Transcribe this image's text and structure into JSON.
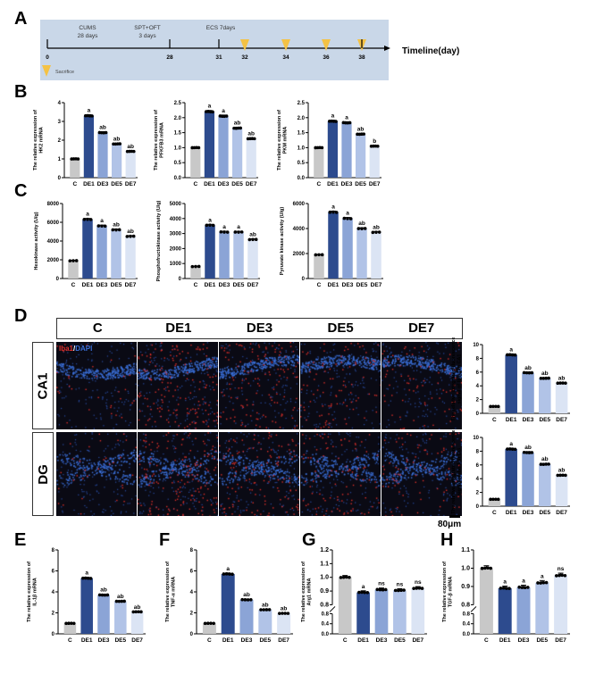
{
  "panel_labels": {
    "A": "A",
    "B": "B",
    "C": "C",
    "D": "D",
    "E": "E",
    "F": "F",
    "G": "G",
    "H": "H"
  },
  "timeline": {
    "phases": [
      {
        "name": "CUMS",
        "duration": "28 days"
      },
      {
        "name": "SPT+OFT",
        "duration": "3 days"
      },
      {
        "name": "ECS 7days",
        "duration": ""
      }
    ],
    "days": [
      "0",
      "28",
      "31",
      "32",
      "34",
      "36",
      "38"
    ],
    "sacrifice_days": [
      "32",
      "34",
      "36",
      "38"
    ],
    "axis_label": "Timeline(day)",
    "legend_label": "Sacrifice",
    "colors": {
      "band": "#c9d7e8",
      "marker": "#f4c245"
    }
  },
  "panel_d": {
    "columns": [
      "C",
      "DE1",
      "DE3",
      "DE5",
      "DE7"
    ],
    "rows": [
      "CA1",
      "DG"
    ],
    "stain": {
      "marker": "Iba1",
      "separator": "/",
      "counterstain": "DAPI"
    },
    "scale_bar": "80μm",
    "colors": {
      "marker": "#e0302a",
      "counterstain": "#3a6fd8"
    }
  },
  "group_colors": {
    "C": "#c8c8c8",
    "DE1": "#2d4b8e",
    "DE3": "#8ba4d6",
    "DE5": "#b1c3e7",
    "DE7": "#dbe4f4"
  },
  "chart_data": [
    {
      "id": "B1",
      "panel": "B",
      "type": "bar",
      "categories": [
        "C",
        "DE1",
        "DE3",
        "DE5",
        "DE7"
      ],
      "values": [
        1.0,
        3.3,
        2.4,
        1.8,
        1.4
      ],
      "significance": [
        "",
        "a",
        "ab",
        "ab",
        "ab"
      ],
      "ylabel_lines": [
        "The relative expression of",
        "HK2 mRNA"
      ],
      "ylim": [
        0,
        4
      ],
      "yticks": [
        0,
        1,
        2,
        3,
        4
      ],
      "ytick_labels": [
        "0",
        "1",
        "2",
        "3",
        "4"
      ]
    },
    {
      "id": "B2",
      "panel": "B",
      "type": "bar",
      "categories": [
        "C",
        "DE1",
        "DE3",
        "DE5",
        "DE7"
      ],
      "values": [
        1.0,
        2.2,
        2.05,
        1.65,
        1.3
      ],
      "significance": [
        "",
        "a",
        "a",
        "ab",
        "ab"
      ],
      "ylabel_lines": [
        "The relative expression of",
        "PFKFB3 mRNA"
      ],
      "ylim": [
        0,
        2.5
      ],
      "yticks": [
        0,
        0.5,
        1,
        1.5,
        2,
        2.5
      ],
      "ytick_labels": [
        "0.0",
        "0.5",
        "1.0",
        "1.5",
        "2.0",
        "2.5"
      ]
    },
    {
      "id": "B3",
      "panel": "B",
      "type": "bar",
      "categories": [
        "C",
        "DE1",
        "DE3",
        "DE5",
        "DE7"
      ],
      "values": [
        1.0,
        1.88,
        1.83,
        1.45,
        1.05
      ],
      "significance": [
        "",
        "a",
        "a",
        "ab",
        "b"
      ],
      "ylabel_lines": [
        "The relative expression of",
        "PKM mRNA"
      ],
      "ylim": [
        0,
        2.5
      ],
      "yticks": [
        0,
        0.5,
        1,
        1.5,
        2,
        2.5
      ],
      "ytick_labels": [
        "0.0",
        "0.5",
        "1.0",
        "1.5",
        "2.0",
        "2.5"
      ]
    },
    {
      "id": "C1",
      "panel": "C",
      "type": "bar",
      "categories": [
        "C",
        "DE1",
        "DE3",
        "DE5",
        "DE7"
      ],
      "values": [
        1900,
        6300,
        5600,
        5200,
        4500
      ],
      "significance": [
        "",
        "a",
        "a",
        "ab",
        "ab"
      ],
      "ylabel_lines": [
        "Hexokinase activity (U/g)"
      ],
      "ylim": [
        0,
        8000
      ],
      "yticks": [
        0,
        2000,
        4000,
        6000,
        8000
      ],
      "ytick_labels": [
        "0",
        "2000",
        "4000",
        "6000",
        "8000"
      ]
    },
    {
      "id": "C2",
      "panel": "C",
      "type": "bar",
      "categories": [
        "C",
        "DE1",
        "DE3",
        "DE5",
        "DE7"
      ],
      "values": [
        800,
        3550,
        3100,
        3100,
        2600
      ],
      "significance": [
        "",
        "a",
        "a",
        "a",
        "ab"
      ],
      "ylabel_lines": [
        "Phosphofructokinase activity (U/g)"
      ],
      "ylim": [
        0,
        5000
      ],
      "yticks": [
        0,
        1000,
        2000,
        3000,
        4000,
        5000
      ],
      "ytick_labels": [
        "0",
        "1000",
        "2000",
        "3000",
        "4000",
        "5000"
      ]
    },
    {
      "id": "C3",
      "panel": "C",
      "type": "bar",
      "categories": [
        "C",
        "DE1",
        "DE3",
        "DE5",
        "DE7"
      ],
      "values": [
        1900,
        5300,
        4800,
        4000,
        3700
      ],
      "significance": [
        "",
        "a",
        "a",
        "ab",
        "ab"
      ],
      "ylabel_lines": [
        "Pyruvate kinase activity (U/g)"
      ],
      "ylim": [
        0,
        6000
      ],
      "yticks": [
        0,
        2000,
        4000,
        6000
      ],
      "ytick_labels": [
        "0",
        "2000",
        "4000",
        "6000"
      ]
    },
    {
      "id": "D1",
      "panel": "D",
      "type": "bar",
      "categories": [
        "C",
        "DE1",
        "DE3",
        "DE5",
        "DE7"
      ],
      "values": [
        1.0,
        8.5,
        5.9,
        5.1,
        4.4
      ],
      "significance": [
        "",
        "a",
        "ab",
        "ab",
        "ab"
      ],
      "ylabel_lines": [
        "The relative integrated fluorescence",
        "signal of Iba-1 in CA1"
      ],
      "ylim": [
        0,
        10
      ],
      "yticks": [
        0,
        2,
        4,
        6,
        8,
        10
      ],
      "ytick_labels": [
        "0",
        "2",
        "4",
        "6",
        "8",
        "10"
      ]
    },
    {
      "id": "D2",
      "panel": "D",
      "type": "bar",
      "categories": [
        "C",
        "DE1",
        "DE3",
        "DE5",
        "DE7"
      ],
      "values": [
        1.0,
        8.3,
        7.8,
        6.1,
        4.5
      ],
      "significance": [
        "",
        "a",
        "ab",
        "ab",
        "ab"
      ],
      "ylabel_lines": [
        "The relative integrated fluorescence",
        "signal of Iba-1 in DG"
      ],
      "ylim": [
        0,
        10
      ],
      "yticks": [
        0,
        2,
        4,
        6,
        8,
        10
      ],
      "ytick_labels": [
        "0",
        "2",
        "4",
        "6",
        "8",
        "10"
      ]
    },
    {
      "id": "E",
      "panel": "E",
      "type": "bar",
      "categories": [
        "C",
        "DE1",
        "DE3",
        "DE5",
        "DE7"
      ],
      "values": [
        1.0,
        5.3,
        3.7,
        3.1,
        2.1
      ],
      "significance": [
        "",
        "a",
        "ab",
        "ab",
        "ab"
      ],
      "ylabel_lines": [
        "The relative expression of",
        "IL-1β mRNA"
      ],
      "ylim": [
        0,
        8
      ],
      "yticks": [
        0,
        2,
        4,
        6,
        8
      ],
      "ytick_labels": [
        "0",
        "2",
        "4",
        "6",
        "8"
      ]
    },
    {
      "id": "F",
      "panel": "F",
      "type": "bar",
      "categories": [
        "C",
        "DE1",
        "DE3",
        "DE5",
        "DE7"
      ],
      "values": [
        1.0,
        5.7,
        3.25,
        2.3,
        1.95
      ],
      "significance": [
        "",
        "a",
        "ab",
        "ab",
        "ab"
      ],
      "ylabel_lines": [
        "The relative expression of",
        "TNF-α mRNA"
      ],
      "ylim": [
        0,
        8
      ],
      "yticks": [
        0,
        2,
        4,
        6,
        8
      ],
      "ytick_labels": [
        "0",
        "2",
        "4",
        "6",
        "8"
      ]
    },
    {
      "id": "G",
      "panel": "G",
      "type": "bar",
      "categories": [
        "C",
        "DE1",
        "DE3",
        "DE5",
        "DE7"
      ],
      "values": [
        1.0,
        0.89,
        0.91,
        0.905,
        0.92
      ],
      "significance": [
        "",
        "a",
        "ns",
        "ns",
        "ns"
      ],
      "ylabel_lines": [
        "The relative expression of",
        "Arg1 mRNA"
      ],
      "ylim": [
        0,
        1.2
      ],
      "axis_break": 0.8,
      "yticks_lower": [
        0,
        0.4,
        0.8
      ],
      "ytick_labels_lower": [
        "0.0",
        "0.4",
        "0.8"
      ],
      "yticks": [
        0.8,
        0.9,
        1.0,
        1.1,
        1.2
      ],
      "ytick_labels": [
        "0.8",
        "0.9",
        "1.0",
        "1.1",
        "1.2"
      ]
    },
    {
      "id": "H",
      "panel": "H",
      "type": "bar",
      "categories": [
        "C",
        "DE1",
        "DE3",
        "DE5",
        "DE7"
      ],
      "values": [
        1.0,
        0.89,
        0.895,
        0.92,
        0.96
      ],
      "significance": [
        "",
        "a",
        "a",
        "a",
        "ns"
      ],
      "ylabel_lines": [
        "The relative expression of",
        "TGF-β mRNA"
      ],
      "ylim": [
        0,
        1.1
      ],
      "axis_break": 0.8,
      "yticks_lower": [
        0,
        0.4,
        0.8
      ],
      "ytick_labels_lower": [
        "0.0",
        "0.4",
        "0.8"
      ],
      "yticks": [
        0.8,
        0.9,
        1.0,
        1.1
      ],
      "ytick_labels": [
        "0.8",
        "0.9",
        "1.0",
        "1.1"
      ]
    }
  ]
}
